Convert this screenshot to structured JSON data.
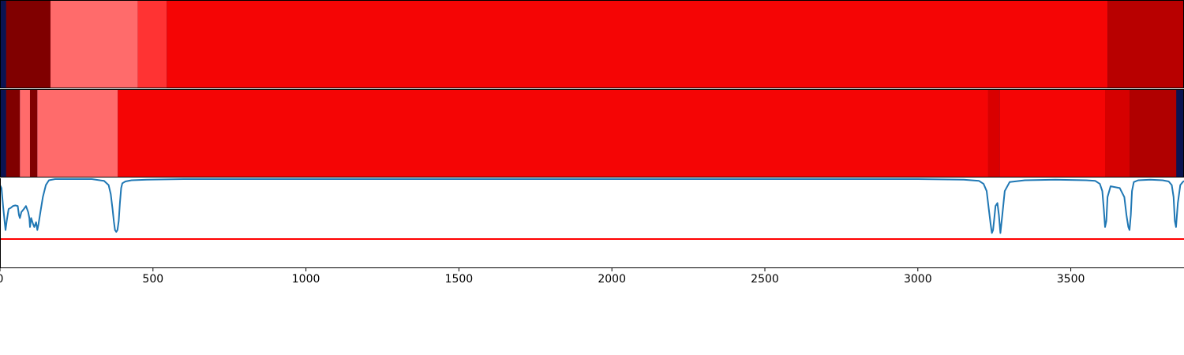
{
  "chart_data": [
    {
      "type": "heatmap",
      "panel": "top",
      "xlim": [
        0,
        3870
      ],
      "background_color": "#0b1452",
      "segments": [
        {
          "x0": 20,
          "x1": 165,
          "color": "#800000"
        },
        {
          "x0": 165,
          "x1": 450,
          "color": "#ff6b6b"
        },
        {
          "x0": 450,
          "x1": 545,
          "color": "#ff3333"
        },
        {
          "x0": 545,
          "x1": 3620,
          "color": "#f50505"
        },
        {
          "x0": 3620,
          "x1": 3870,
          "color": "#b80000"
        }
      ]
    },
    {
      "type": "heatmap",
      "panel": "middle",
      "xlim": [
        0,
        3870
      ],
      "background_color": "#0b1452",
      "segments": [
        {
          "x0": 20,
          "x1": 65,
          "color": "#800000"
        },
        {
          "x0": 65,
          "x1": 98,
          "color": "#ff6b6b"
        },
        {
          "x0": 98,
          "x1": 122,
          "color": "#800000"
        },
        {
          "x0": 122,
          "x1": 385,
          "color": "#ff6b6b"
        },
        {
          "x0": 385,
          "x1": 3230,
          "color": "#f50505"
        },
        {
          "x0": 3230,
          "x1": 3268,
          "color": "#d90000"
        },
        {
          "x0": 3268,
          "x1": 3612,
          "color": "#f50505"
        },
        {
          "x0": 3612,
          "x1": 3692,
          "color": "#d60000"
        },
        {
          "x0": 3692,
          "x1": 3845,
          "color": "#b00000"
        },
        {
          "x0": 3845,
          "x1": 3870,
          "color": "#0b1452"
        }
      ]
    },
    {
      "type": "line",
      "panel": "bottom",
      "xlim": [
        0,
        3870
      ],
      "ylim": [
        0,
        1
      ],
      "xticks": [
        0,
        500,
        1000,
        1500,
        2000,
        2500,
        3000,
        3500
      ],
      "xtick_labels": [
        "0",
        "500",
        "1000",
        "1500",
        "2000",
        "2500",
        "3000",
        "3500"
      ],
      "series": [
        {
          "color": "#1f77b4",
          "x": [
            0,
            5,
            10,
            15,
            18,
            22,
            28,
            35,
            42,
            50,
            58,
            62,
            65,
            70,
            78,
            85,
            92,
            96,
            98,
            102,
            108,
            112,
            118,
            122,
            126,
            132,
            140,
            150,
            160,
            180,
            300,
            340,
            355,
            362,
            368,
            372,
            376,
            380,
            384,
            388,
            392,
            396,
            400,
            410,
            430,
            480,
            600,
            700,
            900,
            1500,
            2500,
            3000,
            3150,
            3200,
            3215,
            3225,
            3232,
            3238,
            3242,
            3246,
            3250,
            3254,
            3260,
            3265,
            3270,
            3276,
            3284,
            3300,
            3350,
            3450,
            3550,
            3580,
            3595,
            3603,
            3608,
            3612,
            3616,
            3620,
            3630,
            3660,
            3675,
            3682,
            3688,
            3692,
            3696,
            3700,
            3706,
            3720,
            3760,
            3800,
            3820,
            3830,
            3836,
            3840,
            3844,
            3850,
            3858,
            3866,
            3870
          ],
          "y": [
            0.9,
            0.85,
            0.55,
            0.3,
            0.15,
            0.3,
            0.5,
            0.52,
            0.55,
            0.56,
            0.55,
            0.4,
            0.35,
            0.45,
            0.5,
            0.55,
            0.45,
            0.35,
            0.2,
            0.35,
            0.25,
            0.2,
            0.28,
            0.15,
            0.25,
            0.45,
            0.7,
            0.9,
            0.98,
            1.0,
            1.0,
            0.97,
            0.9,
            0.75,
            0.5,
            0.3,
            0.15,
            0.12,
            0.15,
            0.3,
            0.6,
            0.85,
            0.93,
            0.96,
            0.98,
            0.99,
            1.0,
            1.0,
            1.0,
            1.0,
            1.0,
            1.0,
            0.99,
            0.97,
            0.92,
            0.8,
            0.5,
            0.25,
            0.1,
            0.15,
            0.35,
            0.55,
            0.6,
            0.4,
            0.1,
            0.4,
            0.8,
            0.95,
            0.98,
            0.99,
            0.98,
            0.97,
            0.92,
            0.8,
            0.5,
            0.2,
            0.3,
            0.7,
            0.88,
            0.85,
            0.7,
            0.4,
            0.2,
            0.15,
            0.4,
            0.8,
            0.95,
            0.98,
            0.99,
            0.98,
            0.96,
            0.9,
            0.7,
            0.3,
            0.2,
            0.6,
            0.9,
            0.95,
            0.97
          ]
        }
      ],
      "hlines": [
        {
          "y": 0.0,
          "color": "#ff0000"
        }
      ]
    }
  ]
}
